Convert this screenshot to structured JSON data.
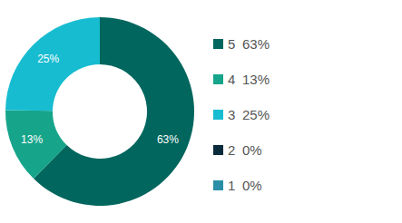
{
  "chart_data": {
    "type": "pie",
    "donut": true,
    "categories": [
      "5",
      "4",
      "3",
      "2",
      "1"
    ],
    "values": [
      63,
      13,
      25,
      0,
      0
    ],
    "value_labels": [
      "63%",
      "13%",
      "25%",
      "0%",
      "0%"
    ],
    "colors": [
      "#00665e",
      "#16a58a",
      "#17bcd0",
      "#0a2b3a",
      "#2a8ea6"
    ],
    "data_labels": true,
    "legend": "right"
  }
}
